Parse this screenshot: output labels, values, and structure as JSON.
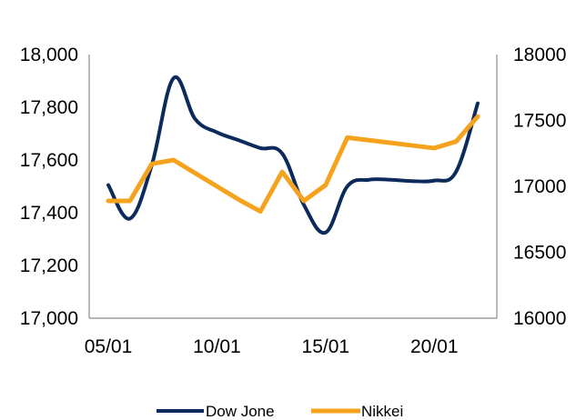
{
  "chart_data": {
    "type": "line",
    "x": [
      "05/01",
      "06/01",
      "07/01",
      "08/01",
      "09/01",
      "10/01",
      "11/01",
      "12/01",
      "13/01",
      "14/01",
      "15/01",
      "16/01",
      "17/01",
      "18/01",
      "19/01",
      "20/01",
      "21/01",
      "22/01"
    ],
    "xticks": [
      "05/01",
      "10/01",
      "15/01",
      "20/01"
    ],
    "series": [
      {
        "name": "Dow Jone",
        "axis": "left",
        "color": "#0d2a5c",
        "values": [
          17505,
          17378,
          17580,
          17910,
          17755,
          17705,
          17675,
          17645,
          17625,
          17430,
          17325,
          17500,
          17525,
          17525,
          17520,
          17522,
          17555,
          17815
        ]
      },
      {
        "name": "Nikkei",
        "axis": "right",
        "color": "#f5a31e",
        "values": [
          16890,
          16890,
          17170,
          17200,
          17100,
          17000,
          16900,
          16810,
          17110,
          16890,
          17010,
          17370,
          17350,
          17330,
          17310,
          17290,
          17340,
          17530
        ]
      }
    ],
    "y_left": {
      "ylim": [
        17000,
        18000
      ],
      "ticks": [
        17000,
        17200,
        17400,
        17600,
        17800,
        18000
      ],
      "tick_labels": [
        "17,000",
        "17,200",
        "17,400",
        "17,600",
        "17,800",
        "18,000"
      ]
    },
    "y_right": {
      "ylim": [
        16000,
        18000
      ],
      "ticks": [
        16000,
        16500,
        17000,
        17500,
        18000
      ],
      "tick_labels": [
        "16000",
        "16500",
        "17000",
        "17500",
        "18000"
      ]
    },
    "grid": false,
    "legend": "bottom-center"
  }
}
